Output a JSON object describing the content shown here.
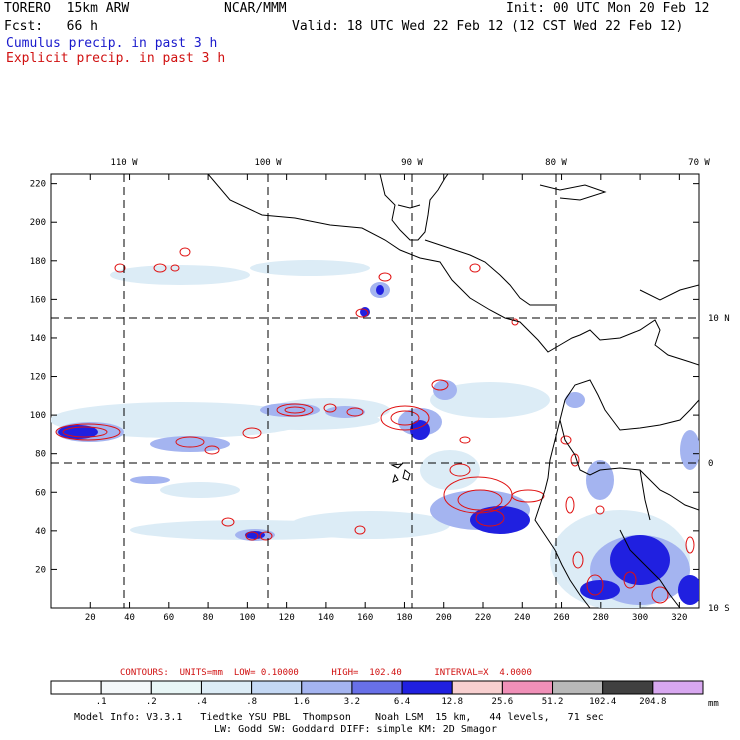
{
  "header": {
    "model": "TORERO  15km ARW",
    "org": "NCAR/MMM",
    "init": "Init: 00 UTC Mon 20 Feb 12",
    "fcst": "Fcst:   66 h",
    "valid": "Valid: 18 UTC Wed 22 Feb 12 (12 CST Wed 22 Feb 12)",
    "field1": "Cumulus precip. in past 3 h",
    "field2": "Explicit precip. in past 3 h"
  },
  "map": {
    "lon_labels": [
      "110 W",
      "100 W",
      "90 W",
      "80 W",
      "70 W"
    ],
    "lat_labels": [
      "10 N",
      "0",
      "10 S"
    ],
    "x_ticks": [
      "20",
      "40",
      "60",
      "80",
      "100",
      "120",
      "140",
      "160",
      "180",
      "200",
      "220",
      "240",
      "260",
      "280",
      "300",
      "320"
    ],
    "y_ticks": [
      "20",
      "40",
      "60",
      "80",
      "100",
      "120",
      "140",
      "160",
      "180",
      "200",
      "220"
    ],
    "grid_x_max": 330,
    "grid_y_max": 225,
    "colors": {
      "land_outline": "#000000",
      "cumulus": "#3030e0",
      "explicit": "#e01010"
    }
  },
  "contour_info": {
    "contours_label": "CONTOURS:",
    "units": "UNITS=mm",
    "low": "LOW= 0.10000",
    "high": "HIGH=  102.40",
    "interval": "INTERVAL=X  4.0000"
  },
  "colorbar": {
    "labels": [
      ".1",
      ".2",
      ".4",
      ".8",
      "1.6",
      "3.2",
      "6.4",
      "12.8",
      "25.6",
      "51.2",
      "102.4",
      "204.8"
    ],
    "unit": "mm",
    "colors": [
      "#ffffff",
      "#f4f8fa",
      "#e8f6f6",
      "#dcecf6",
      "#c4d8f4",
      "#a4b4f0",
      "#6870e8",
      "#2020e0",
      "#f8d0d0",
      "#f090b8",
      "#b8b8b8",
      "#404040",
      "#d8a8f0"
    ]
  },
  "footer": {
    "line1": "Model Info: V3.3.1   Tiedtke YSU PBL  Thompson    Noah LSM  15 km,   44 levels,   71 sec",
    "line2": "LW: Godd SW: Goddard DIFF: simple KM: 2D Smagor"
  }
}
